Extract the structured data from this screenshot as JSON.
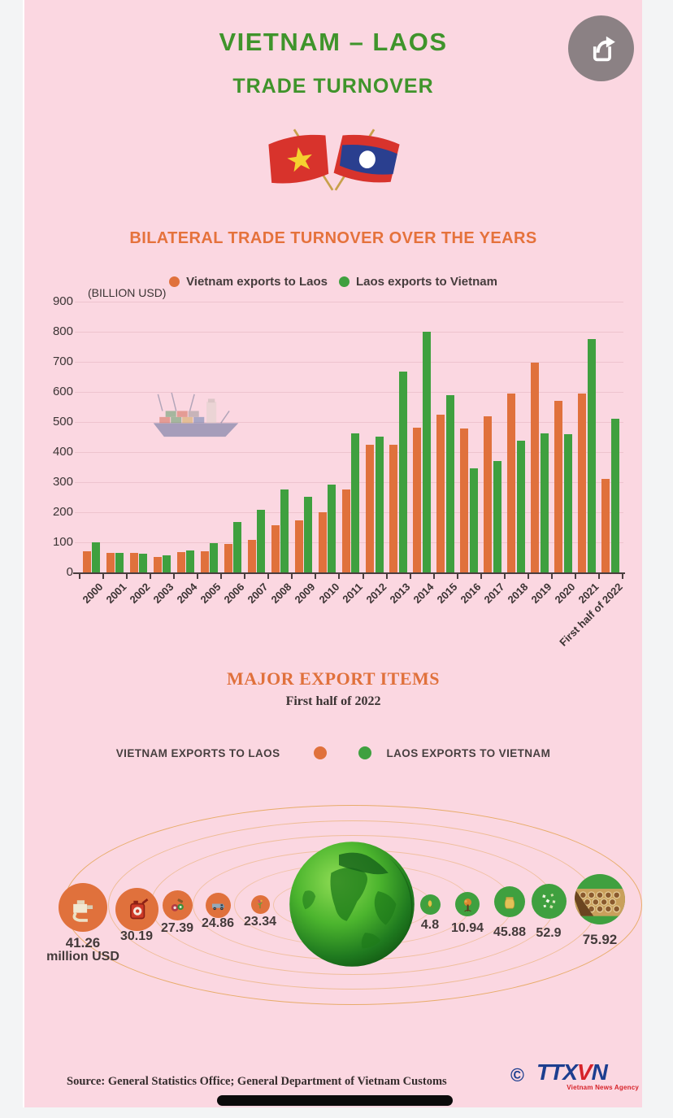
{
  "header": {
    "title": "VIETNAM – LAOS",
    "subtitle": "TRADE TURNOVER",
    "flags": [
      "vietnam-flag",
      "laos-flag"
    ]
  },
  "share_button": {
    "icon": "share-icon"
  },
  "chart_section": {
    "title": "BILATERAL TRADE TURNOVER OVER THE YEARS",
    "unit_label": "(BILLION USD)",
    "legend": [
      {
        "label": "Vietnam exports to Laos",
        "color": "#e0713c"
      },
      {
        "label": "Laos exports to Vietnam",
        "color": "#3fa03f"
      }
    ]
  },
  "chart_data": {
    "type": "bar",
    "title": "BILATERAL TRADE TURNOVER OVER THE YEARS",
    "ylabel": "(BILLION USD)",
    "ylim": [
      0,
      900
    ],
    "ytick_step": 100,
    "grid": true,
    "legend_position": "top",
    "categories": [
      "2000",
      "2001",
      "2002",
      "2003",
      "2004",
      "2005",
      "2006",
      "2007",
      "2008",
      "2009",
      "2010",
      "2011",
      "2012",
      "2013",
      "2014",
      "2015",
      "2016",
      "2017",
      "2018",
      "2019",
      "2020",
      "2021",
      "First half of 2022"
    ],
    "series": [
      {
        "name": "Vietnam exports to Laos",
        "color": "#e0713c",
        "values": [
          71,
          64,
          64,
          52,
          68,
          69,
          95,
          107,
          158,
          172,
          199,
          276,
          425,
          424,
          480,
          525,
          478,
          519,
          594,
          698,
          571,
          595,
          310
        ]
      },
      {
        "name": "Laos exports to Vietnam",
        "color": "#3fa03f",
        "values": [
          101,
          66,
          62,
          58,
          74,
          98,
          167,
          207,
          276,
          252,
          291,
          461,
          451,
          667,
          800,
          588,
          346,
          369,
          438,
          461,
          459,
          777,
          511
        ]
      }
    ]
  },
  "export_section": {
    "title": "MAJOR EXPORT ITEMS",
    "subtitle": "First half of 2022",
    "legend_left": "VIETNAM EXPORTS TO LAOS",
    "legend_right": "LAOS EXPORTS TO VIETNAM",
    "unit": "million USD",
    "vietnam_items": [
      {
        "value": "41.26",
        "unit": "million USD",
        "icon": "fuel-nozzle-icon"
      },
      {
        "value": "30.19",
        "icon": "fuel-can-icon"
      },
      {
        "value": "27.39",
        "icon": "machinery-gears-icon"
      },
      {
        "value": "24.86",
        "icon": "vehicle-icon"
      },
      {
        "value": "23.34",
        "icon": "fertilizer-plant-icon"
      }
    ],
    "laos_items": [
      {
        "value": "4.8",
        "icon": "corn-icon"
      },
      {
        "value": "10.94",
        "icon": "rubber-tree-icon"
      },
      {
        "value": "45.88",
        "icon": "sack-icon"
      },
      {
        "value": "52.9",
        "icon": "ore-minerals-icon"
      },
      {
        "value": "75.92",
        "icon": "timber-icon"
      }
    ]
  },
  "footer": {
    "source": "Source: General Statistics Office; General Department of Vietnam Customs",
    "copyright": "©",
    "logo_part_1": "TTX",
    "logo_part_2": "V",
    "logo_part_3": "N",
    "logo_caption": "Vietnam News Agency"
  }
}
